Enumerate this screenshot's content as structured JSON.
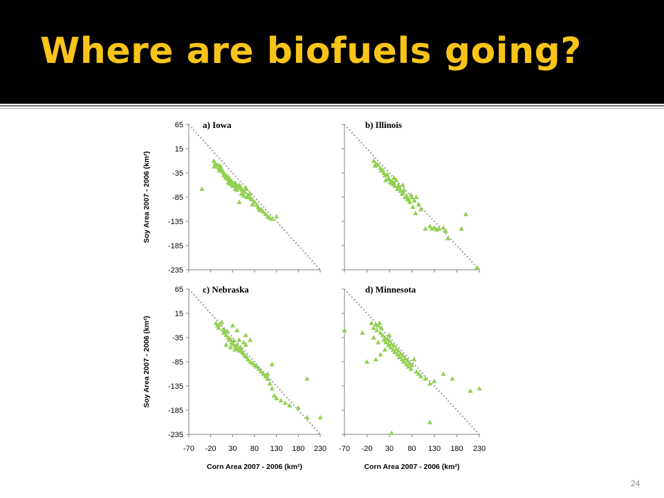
{
  "slide": {
    "title": "Where are biofuels going?",
    "slide_number": "24",
    "colors": {
      "title_bar": "#000000",
      "title_text": "#f9c418",
      "marker": "#92d050",
      "trend": "#a0a0a0"
    }
  },
  "chart_data": [
    {
      "type": "scatter",
      "panel_title": "a) Iowa",
      "marker": "triangle",
      "xlabel": "",
      "ylabel": "Soy Area 2007 - 2006 (km²)",
      "xlim": [
        -70,
        230
      ],
      "ylim": [
        -235,
        65
      ],
      "x_ticks": [],
      "y_ticks": [
        "65",
        "15",
        "-35",
        "-85",
        "-135",
        "-185",
        "-235"
      ],
      "trend_line": [
        [
          -70,
          65
        ],
        [
          230,
          -235
        ]
      ],
      "points": [
        [
          -13,
          -10
        ],
        [
          -10,
          -15
        ],
        [
          -8,
          -20
        ],
        [
          -12,
          -22
        ],
        [
          -5,
          -18
        ],
        [
          -2,
          -25
        ],
        [
          0,
          -20
        ],
        [
          2,
          -28
        ],
        [
          5,
          -30
        ],
        [
          8,
          -32
        ],
        [
          3,
          -22
        ],
        [
          10,
          -35
        ],
        [
          12,
          -38
        ],
        [
          15,
          -40
        ],
        [
          18,
          -42
        ],
        [
          14,
          -45
        ],
        [
          20,
          -48
        ],
        [
          22,
          -45
        ],
        [
          25,
          -50
        ],
        [
          28,
          -52
        ],
        [
          30,
          -55
        ],
        [
          24,
          -58
        ],
        [
          32,
          -60
        ],
        [
          35,
          -55
        ],
        [
          38,
          -58
        ],
        [
          40,
          -62
        ],
        [
          42,
          -65
        ],
        [
          36,
          -68
        ],
        [
          45,
          -60
        ],
        [
          48,
          -63
        ],
        [
          50,
          -68
        ],
        [
          52,
          -70
        ],
        [
          55,
          -72
        ],
        [
          58,
          -75
        ],
        [
          50,
          -78
        ],
        [
          60,
          -65
        ],
        [
          62,
          -68
        ],
        [
          65,
          -80
        ],
        [
          68,
          -85
        ],
        [
          70,
          -78
        ],
        [
          72,
          -88
        ],
        [
          62,
          -85
        ],
        [
          66,
          -82
        ],
        [
          75,
          -90
        ],
        [
          80,
          -95
        ],
        [
          85,
          -100
        ],
        [
          88,
          -105
        ],
        [
          90,
          -108
        ],
        [
          95,
          -110
        ],
        [
          100,
          -115
        ],
        [
          105,
          -120
        ],
        [
          110,
          -125
        ],
        [
          115,
          -128
        ],
        [
          120,
          -130
        ],
        [
          130,
          -125
        ],
        [
          45,
          -95
        ],
        [
          -40,
          -68
        ],
        [
          0,
          -30
        ],
        [
          10,
          -40
        ],
        [
          20,
          -55
        ],
        [
          30,
          -62
        ],
        [
          40,
          -70
        ],
        [
          55,
          -82
        ],
        [
          75,
          -100
        ],
        [
          92,
          -112
        ]
      ]
    },
    {
      "type": "scatter",
      "panel_title": "b) Illinois",
      "marker": "triangle",
      "xlabel": "",
      "ylabel": "",
      "xlim": [
        -70,
        230
      ],
      "ylim": [
        -235,
        65
      ],
      "x_ticks": [],
      "y_ticks": [],
      "trend_line": [
        [
          -70,
          65
        ],
        [
          230,
          -235
        ]
      ],
      "points": [
        [
          -5,
          -10
        ],
        [
          0,
          -15
        ],
        [
          -2,
          -20
        ],
        [
          5,
          -18
        ],
        [
          10,
          -25
        ],
        [
          12,
          -30
        ],
        [
          15,
          -28
        ],
        [
          18,
          -35
        ],
        [
          20,
          -40
        ],
        [
          25,
          -38
        ],
        [
          28,
          -45
        ],
        [
          22,
          -50
        ],
        [
          30,
          -48
        ],
        [
          32,
          -55
        ],
        [
          35,
          -52
        ],
        [
          38,
          -58
        ],
        [
          40,
          -55
        ],
        [
          42,
          -62
        ],
        [
          45,
          -50
        ],
        [
          48,
          -68
        ],
        [
          50,
          -60
        ],
        [
          52,
          -65
        ],
        [
          55,
          -72
        ],
        [
          58,
          -78
        ],
        [
          60,
          -75
        ],
        [
          62,
          -70
        ],
        [
          65,
          -85
        ],
        [
          68,
          -82
        ],
        [
          70,
          -90
        ],
        [
          72,
          -88
        ],
        [
          75,
          -95
        ],
        [
          78,
          -80
        ],
        [
          80,
          -85
        ],
        [
          85,
          -92
        ],
        [
          90,
          -85
        ],
        [
          95,
          -100
        ],
        [
          100,
          -110
        ],
        [
          110,
          -150
        ],
        [
          120,
          -145
        ],
        [
          125,
          -150
        ],
        [
          130,
          -148
        ],
        [
          135,
          -152
        ],
        [
          140,
          -150
        ],
        [
          150,
          -148
        ],
        [
          155,
          -155
        ],
        [
          160,
          -170
        ],
        [
          190,
          -150
        ],
        [
          200,
          -120
        ],
        [
          225,
          -230
        ],
        [
          82,
          -105
        ],
        [
          88,
          -118
        ],
        [
          40,
          -45
        ],
        [
          60,
          -60
        ]
      ]
    },
    {
      "type": "scatter",
      "panel_title": "c) Nebraska",
      "marker": "triangle",
      "xlabel": "Corn Area 2007 - 2006 (km²)",
      "ylabel": "Soy Area 2007 - 2006 (km²)",
      "xlim": [
        -70,
        230
      ],
      "ylim": [
        -235,
        65
      ],
      "x_ticks": [
        "-70",
        "-20",
        "30",
        "80",
        "130",
        "180",
        "230"
      ],
      "y_ticks": [
        "65",
        "15",
        "-35",
        "-85",
        "-135",
        "-185",
        "-235"
      ],
      "trend_line": [
        [
          -70,
          65
        ],
        [
          230,
          -235
        ]
      ],
      "points": [
        [
          -8,
          -5
        ],
        [
          -5,
          -10
        ],
        [
          0,
          -8
        ],
        [
          -2,
          -15
        ],
        [
          5,
          -3
        ],
        [
          8,
          -18
        ],
        [
          10,
          -25
        ],
        [
          12,
          -20
        ],
        [
          15,
          -30
        ],
        [
          18,
          -22
        ],
        [
          20,
          -35
        ],
        [
          22,
          -40
        ],
        [
          25,
          -38
        ],
        [
          28,
          -45
        ],
        [
          30,
          -48
        ],
        [
          32,
          -42
        ],
        [
          35,
          -52
        ],
        [
          38,
          -55
        ],
        [
          40,
          -50
        ],
        [
          42,
          -58
        ],
        [
          45,
          -62
        ],
        [
          48,
          -55
        ],
        [
          50,
          -60
        ],
        [
          52,
          -65
        ],
        [
          55,
          -68
        ],
        [
          58,
          -72
        ],
        [
          60,
          -50
        ],
        [
          62,
          -75
        ],
        [
          65,
          -80
        ],
        [
          70,
          -85
        ],
        [
          75,
          -88
        ],
        [
          80,
          -92
        ],
        [
          85,
          -95
        ],
        [
          90,
          -100
        ],
        [
          95,
          -105
        ],
        [
          100,
          -110
        ],
        [
          105,
          -115
        ],
        [
          110,
          -120
        ],
        [
          115,
          -130
        ],
        [
          120,
          -140
        ],
        [
          125,
          -155
        ],
        [
          130,
          -160
        ],
        [
          140,
          -165
        ],
        [
          150,
          -170
        ],
        [
          160,
          -175
        ],
        [
          180,
          -180
        ],
        [
          200,
          -200
        ],
        [
          200,
          -120
        ],
        [
          230,
          -200
        ],
        [
          30,
          -10
        ],
        [
          40,
          -20
        ],
        [
          60,
          -30
        ],
        [
          70,
          -40
        ],
        [
          120,
          -90
        ],
        [
          110,
          -110
        ],
        [
          25,
          -55
        ],
        [
          35,
          -60
        ],
        [
          45,
          -40
        ],
        [
          15,
          -50
        ],
        [
          55,
          -45
        ]
      ]
    },
    {
      "type": "scatter",
      "panel_title": "d) Minnesota",
      "marker": "triangle",
      "xlabel": "Corn Area 2007 - 2006 (km²)",
      "ylabel": "",
      "xlim": [
        -70,
        230
      ],
      "ylim": [
        -235,
        65
      ],
      "x_ticks": [
        "-70",
        "-20",
        "30",
        "80",
        "130",
        "180",
        "230"
      ],
      "y_ticks": [],
      "trend_line": [
        [
          -70,
          65
        ],
        [
          230,
          -235
        ]
      ],
      "points": [
        [
          -70,
          -20
        ],
        [
          -30,
          -25
        ],
        [
          -20,
          -85
        ],
        [
          -10,
          -5
        ],
        [
          -5,
          -15
        ],
        [
          0,
          -8
        ],
        [
          2,
          -20
        ],
        [
          5,
          -10
        ],
        [
          8,
          -5
        ],
        [
          10,
          -25
        ],
        [
          12,
          -15
        ],
        [
          15,
          -30
        ],
        [
          18,
          -40
        ],
        [
          20,
          -35
        ],
        [
          22,
          -45
        ],
        [
          25,
          -38
        ],
        [
          28,
          -50
        ],
        [
          30,
          -42
        ],
        [
          32,
          -55
        ],
        [
          35,
          -48
        ],
        [
          38,
          -60
        ],
        [
          40,
          -52
        ],
        [
          42,
          -65
        ],
        [
          45,
          -58
        ],
        [
          48,
          -70
        ],
        [
          50,
          -62
        ],
        [
          52,
          -75
        ],
        [
          55,
          -68
        ],
        [
          58,
          -80
        ],
        [
          60,
          -72
        ],
        [
          62,
          -85
        ],
        [
          65,
          -78
        ],
        [
          68,
          -90
        ],
        [
          70,
          -82
        ],
        [
          72,
          -95
        ],
        [
          75,
          -88
        ],
        [
          78,
          -100
        ],
        [
          80,
          -92
        ],
        [
          85,
          -80
        ],
        [
          90,
          -105
        ],
        [
          95,
          -110
        ],
        [
          100,
          -115
        ],
        [
          110,
          -120
        ],
        [
          120,
          -130
        ],
        [
          130,
          -125
        ],
        [
          150,
          -110
        ],
        [
          170,
          -120
        ],
        [
          210,
          -145
        ],
        [
          230,
          -140
        ],
        [
          120,
          -210
        ],
        [
          35,
          -232
        ],
        [
          0,
          -80
        ],
        [
          10,
          -70
        ],
        [
          20,
          -60
        ],
        [
          30,
          -30
        ],
        [
          -5,
          -35
        ],
        [
          5,
          -45
        ]
      ]
    }
  ]
}
